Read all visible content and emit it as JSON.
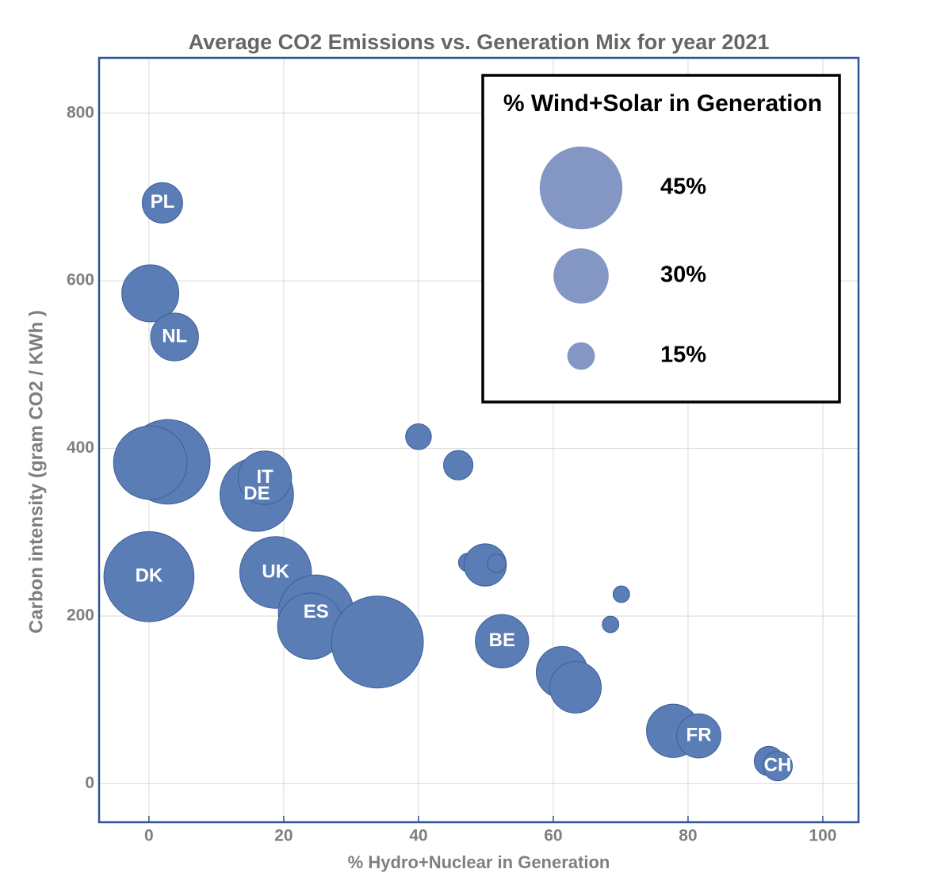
{
  "chart_data": {
    "type": "bubble",
    "title": "Average CO2 Emissions vs. Generation Mix for year 2021",
    "xlabel": "% Hydro+Nuclear in Generation",
    "ylabel": "Carbon intensity (gram CO2 / KWh )",
    "x": [
      2,
      0.2,
      3.8,
      2.8,
      0.2,
      16,
      17.2,
      0,
      18.8,
      24.8,
      24,
      33.9,
      40,
      45.9,
      47.3,
      49.9,
      51.6,
      52.4,
      61.3,
      63.3,
      70.1,
      68.5,
      77.8,
      81.6,
      92,
      93.3
    ],
    "values": [
      693,
      585,
      533,
      384,
      383,
      345,
      365,
      247,
      252,
      204,
      188,
      169,
      414,
      380,
      264,
      261,
      263,
      170,
      133,
      115,
      226,
      190,
      63,
      57,
      27,
      21
    ],
    "sizes": [
      22,
      31,
      26,
      46,
      40,
      40,
      29,
      49,
      39,
      41,
      36,
      50,
      14,
      16,
      10,
      23,
      10,
      29,
      28,
      28,
      9,
      9,
      29,
      24,
      16,
      16
    ],
    "labels": [
      "PL",
      null,
      "NL",
      null,
      null,
      "DE",
      "IT",
      "DK",
      "UK",
      "ES",
      null,
      null,
      null,
      null,
      null,
      null,
      null,
      "BE",
      null,
      null,
      null,
      null,
      null,
      "FR",
      null,
      "CH"
    ],
    "color": "#5b7db6",
    "xlim": [
      -7.4,
      105.3
    ],
    "xticks": [
      0,
      20,
      40,
      60,
      80,
      100
    ],
    "ylim": [
      -46,
      866
    ],
    "yticks": [
      0,
      200,
      400,
      600,
      800
    ],
    "grid": true,
    "size_legend": {
      "title": "% Wind+Solar in Generation",
      "sizes": [
        45,
        30,
        15
      ],
      "labels": [
        "45%",
        "30%",
        "15%"
      ],
      "color": "#8497c4"
    }
  }
}
